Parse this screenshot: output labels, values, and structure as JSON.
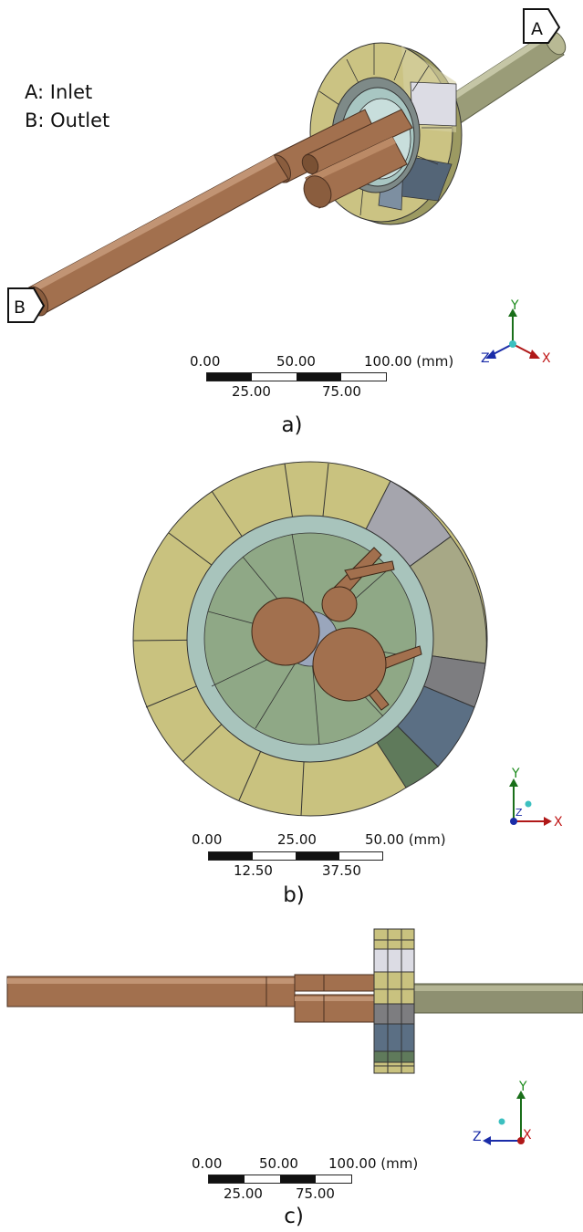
{
  "legend": {
    "inlet": "A: Inlet",
    "outlet": "B: Outlet"
  },
  "markers": {
    "a": "A",
    "b": "B"
  },
  "axes": {
    "x": "X",
    "y": "Y",
    "z": "Z"
  },
  "panel_a": {
    "caption": "a)",
    "scale_top": [
      "0.00",
      "50.00",
      "100.00 (mm)"
    ],
    "scale_bottom": [
      "25.00",
      "75.00"
    ]
  },
  "panel_b": {
    "caption": "b)",
    "scale_top": [
      "0.00",
      "25.00",
      "50.00 (mm)"
    ],
    "scale_bottom": [
      "12.50",
      "37.50"
    ]
  },
  "panel_c": {
    "caption": "c)",
    "scale_top": [
      "0.00",
      "50.00",
      "100.00 (mm)"
    ],
    "scale_bottom": [
      "25.00",
      "75.00"
    ]
  },
  "colors": {
    "copper": "#a2704e",
    "copper_dark": "#8a5d3e",
    "housing_khaki": "#c9c27f",
    "gray_olive": "#a7a886",
    "steel_blue": "#5b6f84",
    "pale_teal": "#a8c4bc",
    "green_fluid": "#8fa886",
    "olive_pipe": "#8e9071"
  }
}
